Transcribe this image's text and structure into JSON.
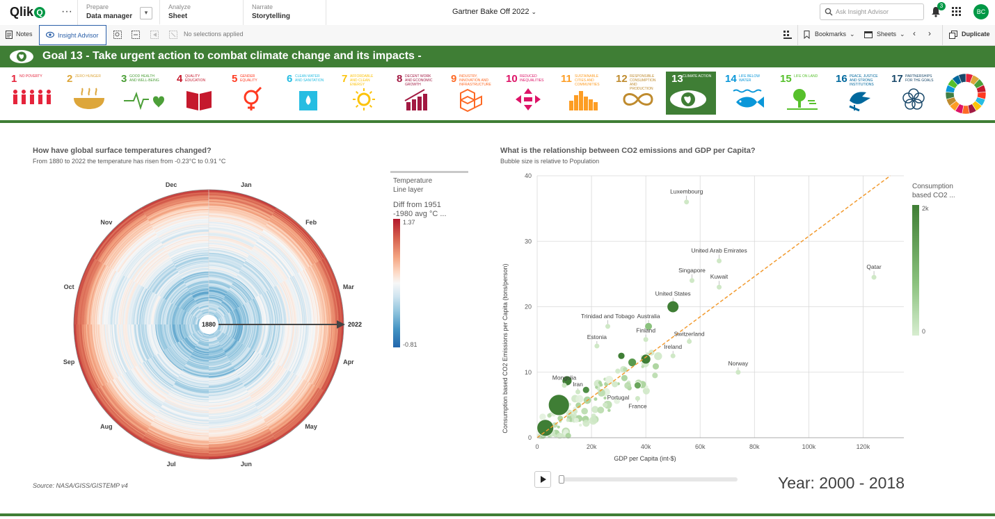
{
  "topbar": {
    "logo_text": "Qlik",
    "logo_q": "Q",
    "more_glyph": "···",
    "tabs": [
      {
        "small": "Prepare",
        "big": "Data manager"
      },
      {
        "small": "Analyze",
        "big": "Sheet"
      },
      {
        "small": "Narrate",
        "big": "Storytelling"
      }
    ],
    "app_title": "Gartner Bake Off 2022",
    "search_placeholder": "Ask Insight Advisor",
    "notification_count": "3",
    "avatar_initials": "BC"
  },
  "toolbar": {
    "notes_label": "Notes",
    "insight_label": "Insight Advisor",
    "selections_text": "No selections applied",
    "bookmarks_label": "Bookmarks",
    "sheets_label": "Sheets",
    "duplicate_label": "Duplicate"
  },
  "banner": {
    "title": "Goal 13 - Take urgent action to combat climate change and its impacts -"
  },
  "sdgs": [
    {
      "num": "1",
      "label": "NO POVERTY",
      "color": "#e5243b",
      "icon": "people-icon"
    },
    {
      "num": "2",
      "label": "ZERO HUNGER",
      "color": "#dda63a",
      "icon": "bowl-icon"
    },
    {
      "num": "3",
      "label": "GOOD HEALTH AND WELL-BEING",
      "color": "#4c9f38",
      "icon": "heartbeat-icon"
    },
    {
      "num": "4",
      "label": "QUALITY EDUCATION",
      "color": "#c5192d",
      "icon": "book-icon"
    },
    {
      "num": "5",
      "label": "GENDER EQUALITY",
      "color": "#ff3a21",
      "icon": "gender-icon"
    },
    {
      "num": "6",
      "label": "CLEAN WATER AND SANITATION",
      "color": "#26bde2",
      "icon": "water-icon"
    },
    {
      "num": "7",
      "label": "AFFORDABLE AND CLEAN ENERGY",
      "color": "#fcc30b",
      "icon": "sun-icon"
    },
    {
      "num": "8",
      "label": "DECENT WORK AND ECONOMIC GROWTH",
      "color": "#a21942",
      "icon": "growth-icon"
    },
    {
      "num": "9",
      "label": "INDUSTRY, INNOVATION AND INFRASTRUCTURE",
      "color": "#fd6925",
      "icon": "cubes-icon"
    },
    {
      "num": "10",
      "label": "REDUCED INEQUALITIES",
      "color": "#dd1367",
      "icon": "arrows-icon"
    },
    {
      "num": "11",
      "label": "SUSTAINABLE CITIES AND COMMUNITIES",
      "color": "#fd9d24",
      "icon": "city-icon"
    },
    {
      "num": "12",
      "label": "RESPONSIBLE CONSUMPTION AND PRODUCTION",
      "color": "#bf8b2e",
      "icon": "infinity-icon"
    },
    {
      "num": "13",
      "label": "CLIMATE ACTION",
      "color": "#3f7e44",
      "icon": "eye-globe-icon"
    },
    {
      "num": "14",
      "label": "LIFE BELOW WATER",
      "color": "#0a97d9",
      "icon": "fish-icon"
    },
    {
      "num": "15",
      "label": "LIFE ON LAND",
      "color": "#56c02b",
      "icon": "tree-icon"
    },
    {
      "num": "16",
      "label": "PEACE, JUSTICE AND STRONG INSTITUTIONS",
      "color": "#00689d",
      "icon": "dove-icon"
    },
    {
      "num": "17",
      "label": "PARTNERSHIPS FOR THE GOALS",
      "color": "#19486a",
      "icon": "rings-icon"
    }
  ],
  "radial": {
    "title": "How have global surface temperatures changed?",
    "subtitle": "From 1880 to 2022 the temperature has risen from -0.23°C to 0.91 °C",
    "months": [
      "Jan",
      "Feb",
      "Mar",
      "Apr",
      "May",
      "Jun",
      "Jul",
      "Aug",
      "Sep",
      "Oct",
      "Nov",
      "Dec"
    ],
    "start_year": "1880",
    "end_year": "2022",
    "legend_layer": "Temperature",
    "legend_layer2": "Line layer",
    "legend_title": "Diff from 1951 -1980 avg °C ...",
    "legend_max": "1.37",
    "legend_min": "-0.81",
    "source": "Source: NASA/GISS/GISTEMP v4"
  },
  "scatter": {
    "title": "What is the relationship between CO2 emissions and GDP per Capita?",
    "subtitle": "Bubble size is relative to Population",
    "xlabel": "GDP per Capita (int-$)",
    "ylabel": "Consumption based CO2 Emissions per Capita (tons/person)",
    "legend_title": "Consumption based CO2 ...",
    "legend_max": "2k",
    "legend_min": "0",
    "year_label": "Year: 2000 - 2018"
  },
  "chart_data": [
    {
      "type": "heatmap",
      "title": "How have global surface temperatures changed?",
      "subtitle": "From 1880 to 2022 the temperature has risen from -0.23°C to 0.91 °C",
      "categories": [
        "Jan",
        "Feb",
        "Mar",
        "Apr",
        "May",
        "Jun",
        "Jul",
        "Aug",
        "Sep",
        "Oct",
        "Nov",
        "Dec"
      ],
      "year_range": [
        1880,
        2022
      ],
      "color_scale": {
        "min": -0.81,
        "max": 1.37
      }
    },
    {
      "type": "scatter",
      "title": "What is the relationship between CO2 emissions and GDP per Capita?",
      "subtitle": "Bubble size is relative to Population",
      "xlabel": "GDP per Capita (int-$)",
      "ylabel": "Consumption based CO2 Emissions per Capita (tons/person)",
      "xlim": [
        0,
        135000
      ],
      "ylim": [
        0,
        40
      ],
      "x_ticks": [
        "0",
        "20k",
        "40k",
        "60k",
        "80k",
        "100k",
        "120k"
      ],
      "y_ticks": [
        "0",
        "10",
        "20",
        "30",
        "40"
      ],
      "color_scale": {
        "min": "0",
        "max": "2k"
      },
      "trendline": {
        "x": [
          0,
          130000
        ],
        "y": [
          0,
          40
        ]
      },
      "labeled_points": [
        {
          "name": "Luxembourg",
          "x": 55000,
          "y": 36
        },
        {
          "name": "United Arab Emirates",
          "x": 67000,
          "y": 27
        },
        {
          "name": "Qatar",
          "x": 124000,
          "y": 24.5
        },
        {
          "name": "Singapore",
          "x": 57000,
          "y": 24
        },
        {
          "name": "Kuwait",
          "x": 67000,
          "y": 23
        },
        {
          "name": "United States",
          "x": 50000,
          "y": 20
        },
        {
          "name": "Trinidad and Tobago",
          "x": 26000,
          "y": 17
        },
        {
          "name": "Australia",
          "x": 41000,
          "y": 17
        },
        {
          "name": "Finland",
          "x": 40000,
          "y": 15
        },
        {
          "name": "Switzerland",
          "x": 56000,
          "y": 14.7
        },
        {
          "name": "Estonia",
          "x": 22000,
          "y": 14
        },
        {
          "name": "Ireland",
          "x": 50000,
          "y": 12.5
        },
        {
          "name": "Norway",
          "x": 74000,
          "y": 10
        },
        {
          "name": "Mongolia",
          "x": 10000,
          "y": 8
        },
        {
          "name": "Iran",
          "x": 15000,
          "y": 7
        },
        {
          "name": "France",
          "x": 37000,
          "y": 6
        },
        {
          "name": "Portugal",
          "x": 25000,
          "y": 5
        }
      ]
    }
  ]
}
